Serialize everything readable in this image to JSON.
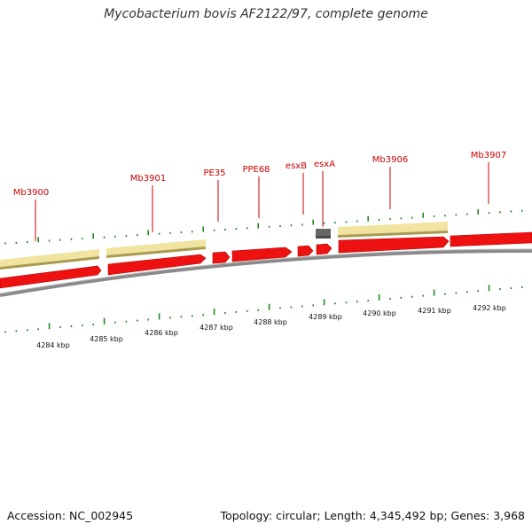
{
  "title": "Mycobacterium bovis AF2122/97, complete genome",
  "footer": {
    "accession": "Accession: NC_002945",
    "topology": "Topology: circular; Length: 4,345,492 bp; Genes: 3,968"
  },
  "colors": {
    "cds_red": "#ee1111",
    "gene_bar": "#f0e4a0",
    "gene_bar_edge": "#a89a50",
    "misc_grey": "#666666",
    "backbone": "#8a8a8a",
    "tick_green": "#228822",
    "label_red": "#cc0000"
  },
  "gene_labels": [
    "Mb3900",
    "Mb3901",
    "PE35",
    "PPE68",
    "esxB",
    "esxA",
    "Mb3906",
    "Mb3907"
  ],
  "scale_labels": [
    "4284 kbp",
    "4285 kbp",
    "4286 kbp",
    "4287 kbp",
    "4288 kbp",
    "4289 kbp",
    "4290 kbp",
    "4291 kbp",
    "4292 kbp"
  ]
}
